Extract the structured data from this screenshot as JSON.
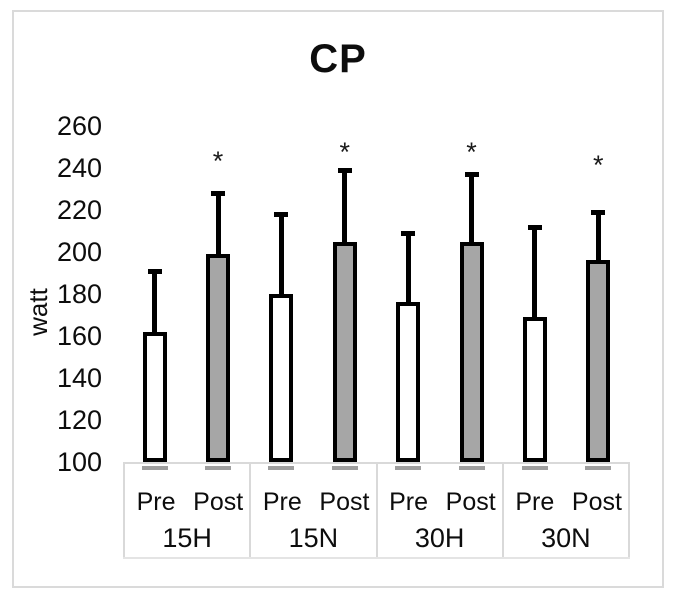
{
  "chart_data": {
    "type": "bar",
    "title": "CP",
    "ylabel": "watt",
    "yticks": [
      260,
      240,
      220,
      200,
      180,
      160,
      140,
      120,
      100
    ],
    "ylim": [
      100,
      268
    ],
    "categories": [
      "15H",
      "15N",
      "30H",
      "30N"
    ],
    "sub_categories": [
      "Pre",
      "Post"
    ],
    "series": [
      {
        "name": "Pre",
        "fill": "#ffffff",
        "values": [
          162,
          180,
          176,
          169
        ],
        "errors_plus": [
          30,
          39,
          34,
          44
        ]
      },
      {
        "name": "Post",
        "fill": "#a6a6a6",
        "values": [
          199,
          205,
          205,
          196
        ],
        "errors_plus": [
          30,
          35,
          33,
          24
        ]
      }
    ],
    "annotations": [
      {
        "text": "*",
        "group": "15H",
        "series": "Post",
        "y_watt": 245
      },
      {
        "text": "*",
        "group": "15N",
        "series": "Post",
        "y_watt": 249
      },
      {
        "text": "*",
        "group": "30H",
        "series": "Post",
        "y_watt": 249
      },
      {
        "text": "*",
        "group": "30N",
        "series": "Post",
        "y_watt": 243
      }
    ],
    "grid": false,
    "legend": "none",
    "bar_stroke": "#000000",
    "frame_color": "#dadada"
  }
}
